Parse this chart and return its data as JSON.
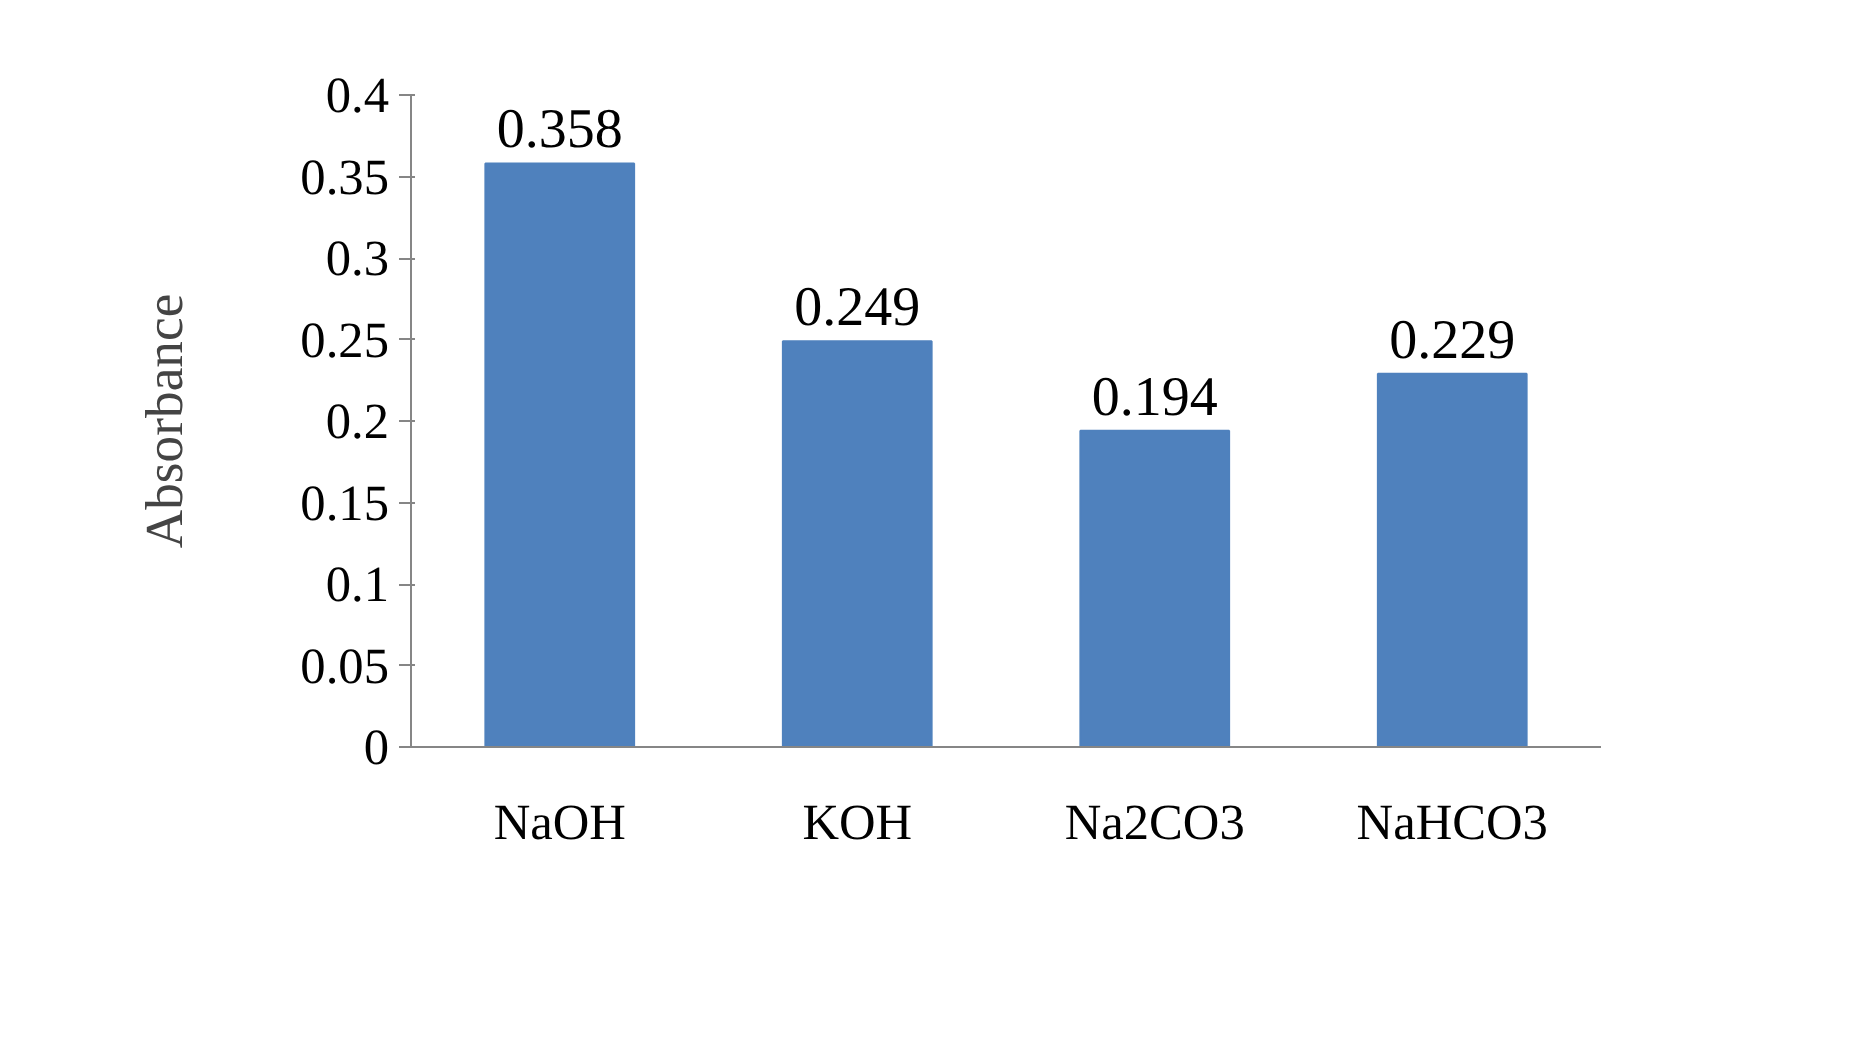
{
  "chart_data": {
    "type": "bar",
    "ylabel": "Absorbance",
    "categories": [
      "NaOH",
      "KOH",
      "Na2CO3",
      "NaHCO3"
    ],
    "values": [
      0.358,
      0.249,
      0.194,
      0.229
    ],
    "color": "#4f81bd",
    "ylim": [
      0,
      0.4
    ],
    "yticks": [
      0,
      0.05,
      0.1,
      0.15,
      0.2,
      0.25,
      0.3,
      0.35,
      0.4
    ],
    "grid": false,
    "data_labels": true
  }
}
